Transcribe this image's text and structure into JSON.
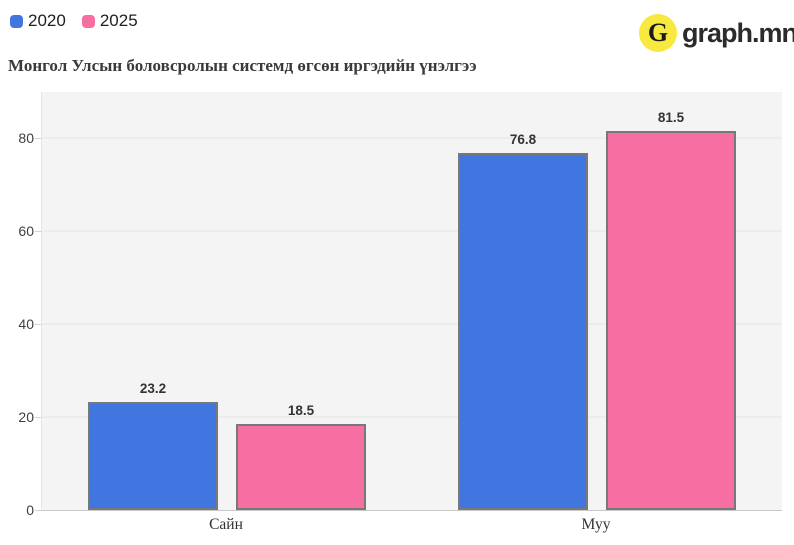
{
  "title": "Монгол Улсын боловсролын системд өгсөн иргэдийн үнэлгээ",
  "legend": {
    "items": [
      {
        "label": "2020",
        "color": "#4176e0"
      },
      {
        "label": "2025",
        "color": "#f66ea2"
      }
    ]
  },
  "logo": {
    "letter": "G",
    "text": "graph.mn",
    "circle_color": "#f7e93f"
  },
  "chart_data": {
    "type": "bar",
    "categories": [
      "Сайн",
      "Муу"
    ],
    "series": [
      {
        "name": "2020",
        "color": "#4176e0",
        "values": [
          23.2,
          76.8
        ]
      },
      {
        "name": "2025",
        "color": "#f66ea2",
        "values": [
          18.5,
          81.5
        ]
      }
    ],
    "title": "Монгол Улсын боловсролын системд өгсөн иргэдийн үнэлгээ",
    "xlabel": "",
    "ylabel": "",
    "yticks": [
      0,
      20,
      40,
      60,
      80
    ],
    "ylim": [
      0,
      90
    ],
    "grid": true,
    "legend_position": "top-left",
    "plot_background": "#f4f4f4",
    "bar_border_color": "#787878"
  }
}
